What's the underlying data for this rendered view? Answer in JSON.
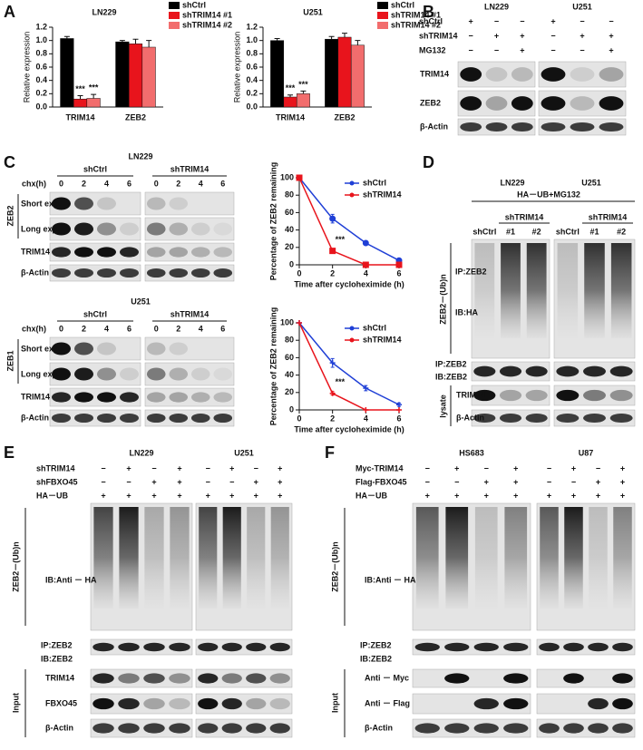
{
  "panel_letters": [
    "A",
    "B",
    "C",
    "D",
    "E",
    "F"
  ],
  "chart_data": [
    {
      "type": "bar",
      "title": "LN229",
      "y_label": "Relative expression",
      "categories": [
        "TRIM14",
        "ZEB2"
      ],
      "series": [
        {
          "name": "shCtrl",
          "color": "#000000",
          "values": [
            1.03,
            0.98
          ],
          "errors": [
            0.03,
            0.02
          ]
        },
        {
          "name": "shTRIM14 #1",
          "color": "#e8141c",
          "values": [
            0.12,
            0.95
          ],
          "errors": [
            0.05,
            0.07
          ]
        },
        {
          "name": "shTRIM14 #2",
          "color": "#f26d6d",
          "values": [
            0.13,
            0.9
          ],
          "errors": [
            0.06,
            0.1
          ]
        }
      ],
      "ylim": [
        0,
        1.2
      ],
      "yticks": [
        {
          "value": 0,
          "label": "0.0"
        },
        {
          "value": 0.2,
          "label": "0.2"
        },
        {
          "value": 0.4,
          "label": "0.4"
        },
        {
          "value": 0.6,
          "label": "0.6"
        },
        {
          "value": 0.8,
          "label": "0.8"
        },
        {
          "value": 1,
          "label": "1.0"
        },
        {
          "value": 1.2,
          "label": "1.2"
        }
      ],
      "annotations": [
        "***",
        "***"
      ],
      "legend": "right"
    },
    {
      "type": "bar",
      "title": "U251",
      "y_label": "Relative expression",
      "categories": [
        "TRIM14",
        "ZEB2"
      ],
      "series": [
        {
          "name": "shCtrl",
          "color": "#000000",
          "values": [
            1.0,
            1.02
          ],
          "errors": [
            0.03,
            0.04
          ]
        },
        {
          "name": "shTRIM14 #1",
          "color": "#e8141c",
          "values": [
            0.15,
            1.05
          ],
          "errors": [
            0.03,
            0.06
          ]
        },
        {
          "name": "shTRIM14 #2",
          "color": "#f26d6d",
          "values": [
            0.2,
            0.93
          ],
          "errors": [
            0.04,
            0.07
          ]
        }
      ],
      "ylim": [
        0,
        1.2
      ],
      "yticks": [
        {
          "value": 0,
          "label": "0.0"
        },
        {
          "value": 0.2,
          "label": "0.2"
        },
        {
          "value": 0.4,
          "label": "0.4"
        },
        {
          "value": 0.6,
          "label": "0.6"
        },
        {
          "value": 0.8,
          "label": "0.8"
        },
        {
          "value": 1,
          "label": "1.0"
        },
        {
          "value": 1.2,
          "label": "1.2"
        }
      ],
      "annotations": [
        "***",
        "***"
      ],
      "legend": "right"
    },
    {
      "type": "line",
      "x_label": "Time after cycloheximide (h)",
      "y_label": "Percentage of ZEB2 remaining",
      "x": [
        0,
        2,
        4,
        6
      ],
      "series": [
        {
          "name": "shCtrl",
          "color": "#1f3fd6",
          "marker": "circle",
          "values": [
            100,
            53,
            25,
            5
          ],
          "errors": [
            0,
            5,
            1,
            2
          ]
        },
        {
          "name": "shTRIM14",
          "color": "#e8141c",
          "marker": "square",
          "values": [
            100,
            16,
            0,
            0
          ],
          "errors": [
            0,
            2,
            0,
            0
          ]
        }
      ],
      "xlim": [
        0,
        6
      ],
      "xticks": [
        0,
        2,
        4,
        6
      ],
      "ylim": [
        0,
        100
      ],
      "yticks": [
        0,
        20,
        40,
        60,
        80,
        100
      ],
      "annotations": [
        "***"
      ],
      "legend": "upper right"
    },
    {
      "type": "line",
      "x_label": "Time after cycloheximide (h)",
      "y_label": "Percentage of ZEB2 remaining",
      "x": [
        0,
        2,
        4,
        6
      ],
      "series": [
        {
          "name": "shCtrl",
          "color": "#1f3fd6",
          "marker": "cross",
          "values": [
            100,
            54,
            25,
            6
          ],
          "errors": [
            0,
            5,
            3,
            2
          ]
        },
        {
          "name": "shTRIM14",
          "color": "#e8141c",
          "marker": "cross",
          "values": [
            100,
            19,
            0,
            0
          ],
          "errors": [
            0,
            2,
            0,
            0
          ]
        }
      ],
      "xlim": [
        0,
        6
      ],
      "xticks": [
        0,
        2,
        4,
        6
      ],
      "ylim": [
        0,
        100
      ],
      "yticks": [
        0,
        20,
        40,
        60,
        80,
        100
      ],
      "annotations": [
        "***"
      ],
      "legend": "upper right"
    }
  ],
  "panel_b": {
    "cell_lines": [
      "LN229",
      "U251"
    ],
    "rows": [
      {
        "label": "shCtrl",
        "signs": [
          "+",
          "−",
          "−",
          "+",
          "−",
          "−"
        ]
      },
      {
        "label": "shTRIM14",
        "signs": [
          "−",
          "+",
          "+",
          "−",
          "+",
          "+"
        ]
      },
      {
        "label": "MG132",
        "signs": [
          "−",
          "−",
          "+",
          "−",
          "−",
          "+"
        ]
      }
    ],
    "blots": [
      "TRIM14",
      "ZEB2",
      "β-Actin"
    ]
  },
  "panel_c": [
    {
      "title": "LN229",
      "time_label": "chx(h)",
      "groups": [
        "shCtrl",
        "shTRIM14"
      ],
      "times": [
        "0",
        "2",
        "4",
        "6",
        "0",
        "2",
        "4",
        "6"
      ],
      "bracket": "ZEB2",
      "exposures": [
        "Short exp.",
        "Long exp."
      ],
      "blots": [
        "TRIM14",
        "β-Actin"
      ]
    },
    {
      "title": "U251",
      "time_label": "chx(h)",
      "groups": [
        "shCtrl",
        "shTRIM14"
      ],
      "times": [
        "0",
        "2",
        "4",
        "6",
        "0",
        "2",
        "4",
        "6"
      ],
      "bracket": "ZEB1",
      "exposures": [
        "Short exp.",
        "Long exp."
      ],
      "blots": [
        "TRIM14",
        "β-Actin"
      ]
    }
  ],
  "panel_d": {
    "cell_lines": [
      "LN229",
      "U251"
    ],
    "treatment": "HA－UB+MG132",
    "groups": [
      "shTRIM14",
      "shTRIM14"
    ],
    "lanes": [
      "shCtrl",
      "#1",
      "#2",
      "shCtrl",
      "#1",
      "#2"
    ],
    "bracket": "ZEB2－(Ub)n",
    "ub_labels": [
      "IP:ZEB2",
      "IB:HA"
    ],
    "ip_labels": [
      "IP:ZEB2",
      "IB:ZEB2"
    ],
    "lysate": "lysate",
    "lysate_blots": [
      "TRIM14",
      "β-Actin"
    ]
  },
  "panel_e": {
    "cell_lines": [
      "LN229",
      "U251"
    ],
    "rows": [
      {
        "label": "shTRIM14",
        "signs": [
          "−",
          "+",
          "−",
          "+",
          "−",
          "+",
          "−",
          "+"
        ]
      },
      {
        "label": "shFBXO45",
        "signs": [
          "−",
          "−",
          "+",
          "+",
          "−",
          "−",
          "+",
          "+"
        ]
      },
      {
        "label": "HA－UB",
        "signs": [
          "+",
          "+",
          "+",
          "+",
          "+",
          "+",
          "+",
          "+"
        ]
      }
    ],
    "bracket": "ZEB2－(Ub)n",
    "ub_label": "IB:Anti － HA",
    "ip_labels": [
      "IP:ZEB2",
      "IB:ZEB2"
    ],
    "input": "Input",
    "input_blots": [
      "TRIM14",
      "FBXO45",
      "β-Actin"
    ]
  },
  "panel_f": {
    "cell_lines": [
      "HS683",
      "U87"
    ],
    "rows": [
      {
        "label": "Myc-TRIM14",
        "signs": [
          "−",
          "+",
          "−",
          "+",
          "−",
          "+",
          "−",
          "+"
        ]
      },
      {
        "label": "Flag-FBXO45",
        "signs": [
          "−",
          "−",
          "+",
          "+",
          "−",
          "−",
          "+",
          "+"
        ]
      },
      {
        "label": "HA－UB",
        "signs": [
          "+",
          "+",
          "+",
          "+",
          "+",
          "+",
          "+",
          "+"
        ]
      }
    ],
    "bracket": "ZEB2－(Ub)n",
    "ub_label": "IB:Anti － HA",
    "ip_labels": [
      "IP:ZEB2",
      "IB:ZEB2"
    ],
    "input": "Input",
    "input_blots": [
      "Anti － Myc",
      "Anti － Flag",
      "β-Actin"
    ]
  }
}
